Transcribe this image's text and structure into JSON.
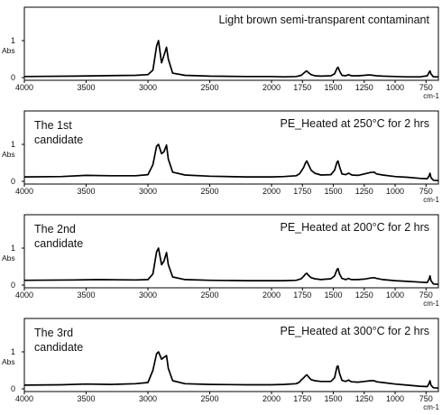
{
  "chart_data": [
    {
      "type": "line",
      "panel": "contaminant",
      "sample_label": "Light brown semi-transparent contaminant",
      "candidate_label": [],
      "ylabel": "Abs",
      "ytick_labels": [
        "1",
        "0"
      ],
      "xlabel_unit": "cm-1",
      "xlim": [
        4000,
        650
      ],
      "ylim": [
        0,
        1.05
      ],
      "xticks": [
        4000,
        3500,
        3000,
        2500,
        2000,
        1750,
        1500,
        1250,
        1000,
        750
      ],
      "x_reversed": true,
      "grid": false,
      "series": [
        {
          "x": [
            4000,
            3600,
            3400,
            3100,
            3000,
            2960,
            2930,
            2915,
            2890,
            2870,
            2850,
            2835,
            2800,
            2700,
            2500,
            2200,
            2000,
            1900,
            1800,
            1760,
            1740,
            1725,
            1715,
            1700,
            1680,
            1650,
            1600,
            1520,
            1490,
            1470,
            1462,
            1450,
            1430,
            1400,
            1377,
            1365,
            1350,
            1300,
            1250,
            1220,
            1200,
            1180,
            1150,
            1100,
            1000,
            900,
            800,
            740,
            725,
            718,
            710,
            690,
            650
          ],
          "y": [
            0.03,
            0.04,
            0.05,
            0.06,
            0.08,
            0.2,
            0.85,
            1.0,
            0.4,
            0.6,
            0.82,
            0.5,
            0.12,
            0.06,
            0.04,
            0.03,
            0.03,
            0.02,
            0.03,
            0.06,
            0.12,
            0.16,
            0.18,
            0.13,
            0.08,
            0.05,
            0.04,
            0.05,
            0.1,
            0.25,
            0.28,
            0.18,
            0.06,
            0.05,
            0.08,
            0.06,
            0.05,
            0.05,
            0.06,
            0.07,
            0.07,
            0.06,
            0.05,
            0.04,
            0.03,
            0.02,
            0.02,
            0.05,
            0.14,
            0.18,
            0.1,
            0.02,
            0.02
          ]
        }
      ]
    },
    {
      "type": "line",
      "panel": "candidate-1",
      "sample_label": "PE_Heated at 250°C for 2 hrs",
      "candidate_label": [
        "The 1st",
        "candidate"
      ],
      "ylabel": "Abs",
      "ytick_labels": [
        "1",
        "0"
      ],
      "xlabel_unit": "cm-1",
      "xlim": [
        4000,
        650
      ],
      "ylim": [
        0,
        1.05
      ],
      "xticks": [
        4000,
        3500,
        3000,
        2500,
        2000,
        1750,
        1500,
        1250,
        1000,
        750
      ],
      "x_reversed": true,
      "grid": false,
      "series": [
        {
          "x": [
            4000,
            3700,
            3500,
            3300,
            3100,
            3000,
            2960,
            2930,
            2915,
            2890,
            2870,
            2850,
            2835,
            2800,
            2700,
            2500,
            2200,
            2000,
            1900,
            1800,
            1775,
            1760,
            1740,
            1725,
            1715,
            1700,
            1680,
            1650,
            1600,
            1520,
            1490,
            1470,
            1462,
            1450,
            1430,
            1400,
            1377,
            1365,
            1350,
            1300,
            1250,
            1200,
            1170,
            1150,
            1100,
            1000,
            900,
            800,
            740,
            725,
            718,
            710,
            690,
            650
          ],
          "y": [
            0.12,
            0.13,
            0.16,
            0.15,
            0.15,
            0.18,
            0.45,
            0.95,
            1.0,
            0.75,
            0.8,
            0.98,
            0.6,
            0.25,
            0.17,
            0.14,
            0.12,
            0.12,
            0.13,
            0.15,
            0.2,
            0.27,
            0.38,
            0.5,
            0.55,
            0.45,
            0.3,
            0.22,
            0.17,
            0.18,
            0.3,
            0.52,
            0.55,
            0.4,
            0.2,
            0.18,
            0.22,
            0.2,
            0.17,
            0.16,
            0.2,
            0.24,
            0.25,
            0.2,
            0.17,
            0.13,
            0.11,
            0.08,
            0.07,
            0.15,
            0.22,
            0.1,
            0.03,
            0.02
          ]
        }
      ]
    },
    {
      "type": "line",
      "panel": "candidate-2",
      "sample_label": "PE_Heated at 200°C for 2 hrs",
      "candidate_label": [
        "The 2nd",
        "candidate"
      ],
      "ylabel": "Abs",
      "ytick_labels": [
        "1",
        "0"
      ],
      "xlabel_unit": "cm-1",
      "xlim": [
        4000,
        650
      ],
      "ylim": [
        0,
        1.05
      ],
      "xticks": [
        4000,
        3500,
        3000,
        2500,
        2000,
        1750,
        1500,
        1250,
        1000,
        750
      ],
      "x_reversed": true,
      "grid": false,
      "series": [
        {
          "x": [
            4000,
            3600,
            3400,
            3100,
            3000,
            2960,
            2930,
            2915,
            2890,
            2870,
            2850,
            2835,
            2800,
            2700,
            2500,
            2200,
            2000,
            1900,
            1800,
            1760,
            1740,
            1725,
            1715,
            1700,
            1680,
            1650,
            1600,
            1520,
            1490,
            1470,
            1462,
            1450,
            1430,
            1400,
            1377,
            1365,
            1350,
            1300,
            1250,
            1200,
            1170,
            1150,
            1100,
            1000,
            900,
            800,
            740,
            725,
            718,
            710,
            690,
            650
          ],
          "y": [
            0.13,
            0.14,
            0.15,
            0.14,
            0.15,
            0.3,
            0.9,
            1.0,
            0.55,
            0.65,
            0.88,
            0.55,
            0.22,
            0.15,
            0.13,
            0.12,
            0.12,
            0.12,
            0.13,
            0.17,
            0.24,
            0.3,
            0.32,
            0.26,
            0.2,
            0.17,
            0.15,
            0.17,
            0.25,
            0.42,
            0.45,
            0.3,
            0.18,
            0.15,
            0.18,
            0.16,
            0.15,
            0.15,
            0.16,
            0.19,
            0.2,
            0.18,
            0.15,
            0.12,
            0.1,
            0.08,
            0.07,
            0.16,
            0.25,
            0.12,
            0.03,
            0.02
          ]
        }
      ]
    },
    {
      "type": "line",
      "panel": "candidate-3",
      "sample_label": "PE_Heated at 300°C for 2 hrs",
      "candidate_label": [
        "The 3rd",
        "candidate"
      ],
      "ylabel": "Abs",
      "ytick_labels": [
        "1",
        "0"
      ],
      "xlabel_unit": "cm-1",
      "xlim": [
        4000,
        650
      ],
      "ylim": [
        0,
        1.05
      ],
      "xticks": [
        4000,
        3500,
        3000,
        2500,
        2000,
        1750,
        1500,
        1250,
        1000,
        750
      ],
      "x_reversed": true,
      "grid": false,
      "series": [
        {
          "x": [
            4000,
            3700,
            3500,
            3300,
            3100,
            3000,
            2960,
            2930,
            2915,
            2890,
            2870,
            2850,
            2835,
            2800,
            2700,
            2500,
            2200,
            2000,
            1900,
            1800,
            1775,
            1760,
            1740,
            1725,
            1715,
            1700,
            1680,
            1650,
            1600,
            1520,
            1490,
            1470,
            1462,
            1450,
            1430,
            1400,
            1377,
            1365,
            1350,
            1300,
            1250,
            1200,
            1170,
            1150,
            1100,
            1000,
            900,
            800,
            740,
            725,
            718,
            710,
            690,
            650
          ],
          "y": [
            0.1,
            0.11,
            0.13,
            0.12,
            0.14,
            0.17,
            0.5,
            0.95,
            1.0,
            0.8,
            0.85,
            0.9,
            0.55,
            0.22,
            0.14,
            0.12,
            0.11,
            0.11,
            0.12,
            0.14,
            0.18,
            0.24,
            0.3,
            0.35,
            0.38,
            0.32,
            0.25,
            0.22,
            0.2,
            0.2,
            0.3,
            0.6,
            0.62,
            0.42,
            0.23,
            0.2,
            0.24,
            0.21,
            0.19,
            0.18,
            0.2,
            0.22,
            0.22,
            0.19,
            0.17,
            0.13,
            0.1,
            0.07,
            0.06,
            0.15,
            0.22,
            0.1,
            0.03,
            0.02
          ]
        }
      ]
    }
  ]
}
